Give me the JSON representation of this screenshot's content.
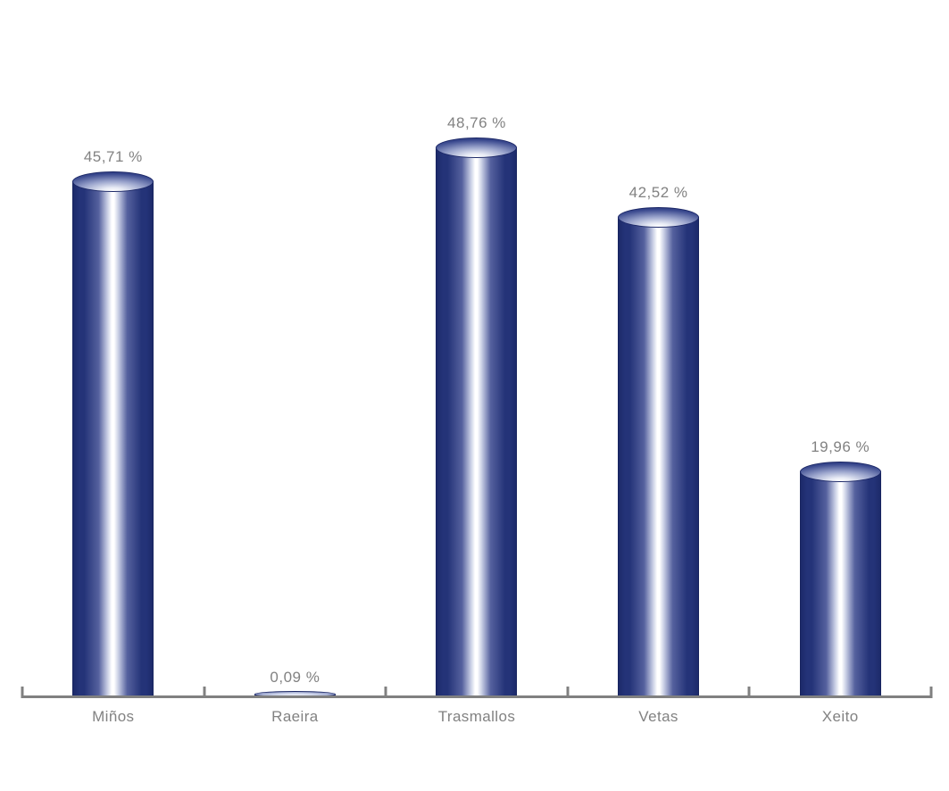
{
  "chart_data": {
    "type": "bar",
    "style": "3d-cylinder-vertical",
    "title": "",
    "xlabel": "",
    "ylabel": "",
    "categories": [
      "Miños",
      "Raeira",
      "Trasmallos",
      "Vetas",
      "Xeito"
    ],
    "values": [
      45.71,
      0.09,
      48.76,
      42.52,
      19.96
    ],
    "value_labels": [
      "45,71 %",
      "0,09 %",
      "48,76 %",
      "42,52 %",
      "19,96 %"
    ],
    "ylim": [
      0,
      50
    ],
    "grid": false,
    "legend": null,
    "colors": {
      "bar_dark": "#1a2870",
      "bar_highlight": "#ffffff",
      "axis": "#808080",
      "label_text": "#828282",
      "background": "#ffffff"
    }
  }
}
